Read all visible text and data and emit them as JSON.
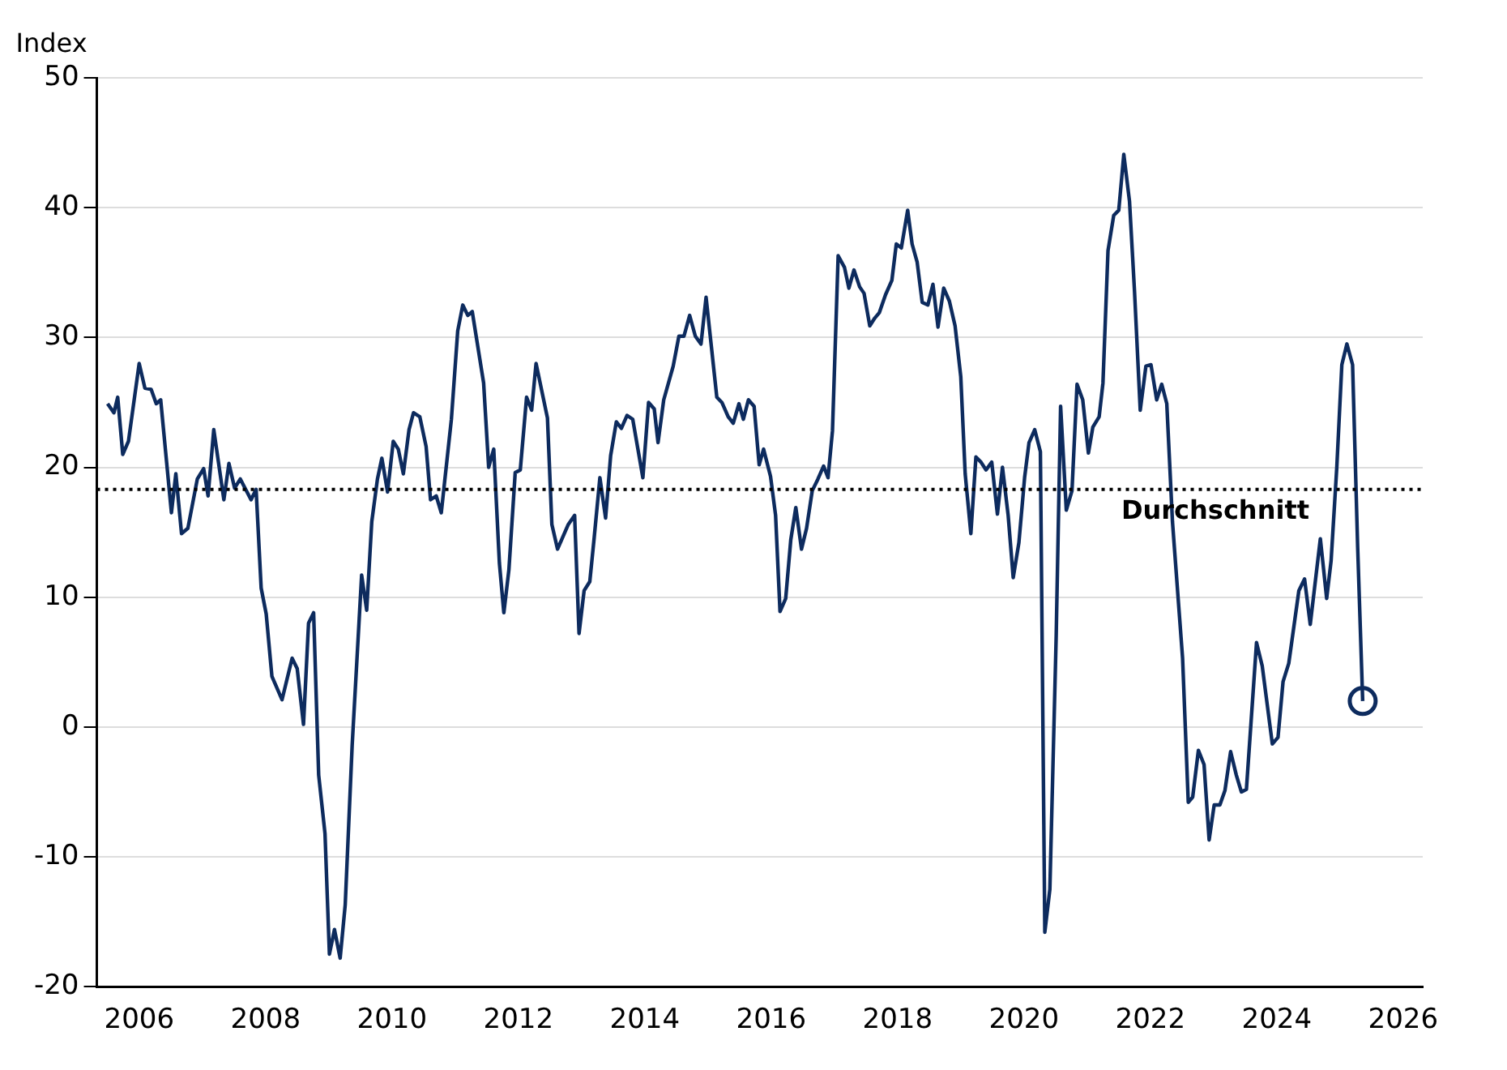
{
  "chart_data": {
    "type": "line",
    "ylabel": "Index",
    "xlim": [
      2005.33,
      2026.31
    ],
    "xticks": [
      2006,
      2008,
      2010,
      2012,
      2014,
      2016,
      2018,
      2020,
      2022,
      2024,
      2026
    ],
    "ylim": [
      -20,
      50
    ],
    "yticks": [
      -20,
      -10,
      0,
      10,
      20,
      30,
      40,
      50
    ],
    "grid": "y",
    "legend": false,
    "marker": "none",
    "line_style": "solid",
    "ref_lines": [
      {
        "axis": "y",
        "value": 18.3,
        "label": "Durchschnitt",
        "color": "#000000",
        "line_style": "dotted"
      }
    ],
    "series": [
      {
        "color": "#0d2b5e",
        "x": [
          2005.5,
          2005.6,
          2005.66,
          2005.74,
          2005.83,
          2006.0,
          2006.09,
          2006.19,
          2006.27,
          2006.34,
          2006.51,
          2006.58,
          2006.67,
          2006.77,
          2006.92,
          2007.02,
          2007.09,
          2007.18,
          2007.34,
          2007.42,
          2007.51,
          2007.6,
          2007.77,
          2007.85,
          2007.93,
          2008.01,
          2008.1,
          2008.26,
          2008.42,
          2008.5,
          2008.6,
          2008.68,
          2008.76,
          2008.84,
          2008.94,
          2009.01,
          2009.09,
          2009.18,
          2009.26,
          2009.37,
          2009.52,
          2009.6,
          2009.68,
          2009.77,
          2009.84,
          2009.93,
          2010.02,
          2010.1,
          2010.18,
          2010.27,
          2010.34,
          2010.44,
          2010.54,
          2010.61,
          2010.7,
          2010.78,
          2010.94,
          2011.04,
          2011.12,
          2011.2,
          2011.27,
          2011.45,
          2011.53,
          2011.61,
          2011.7,
          2011.77,
          2011.85,
          2011.95,
          2012.03,
          2012.13,
          2012.21,
          2012.28,
          2012.46,
          2012.53,
          2012.62,
          2012.79,
          2012.89,
          2012.96,
          2013.04,
          2013.13,
          2013.2,
          2013.29,
          2013.38,
          2013.46,
          2013.55,
          2013.63,
          2013.72,
          2013.81,
          2013.97,
          2014.06,
          2014.15,
          2014.21,
          2014.3,
          2014.45,
          2014.54,
          2014.62,
          2014.71,
          2014.8,
          2014.89,
          2014.97,
          2015.14,
          2015.22,
          2015.32,
          2015.4,
          2015.49,
          2015.56,
          2015.64,
          2015.73,
          2015.81,
          2015.88,
          2015.99,
          2016.07,
          2016.14,
          2016.23,
          2016.31,
          2016.39,
          2016.48,
          2016.56,
          2016.65,
          2016.74,
          2016.83,
          2016.9,
          2016.97,
          2017.06,
          2017.16,
          2017.23,
          2017.31,
          2017.4,
          2017.47,
          2017.56,
          2017.64,
          2017.71,
          2017.81,
          2017.91,
          2017.98,
          2018.06,
          2018.16,
          2018.23,
          2018.31,
          2018.39,
          2018.48,
          2018.56,
          2018.64,
          2018.73,
          2018.82,
          2018.91,
          2019.0,
          2019.07,
          2019.16,
          2019.24,
          2019.32,
          2019.4,
          2019.49,
          2019.58,
          2019.66,
          2019.75,
          2019.83,
          2019.92,
          2020.01,
          2020.08,
          2020.17,
          2020.26,
          2020.33,
          2020.41,
          2020.51,
          2020.58,
          2020.67,
          2020.76,
          2020.84,
          2020.93,
          2021.02,
          2021.09,
          2021.19,
          2021.25,
          2021.33,
          2021.42,
          2021.5,
          2021.58,
          2021.67,
          2021.75,
          2021.84,
          2021.93,
          2022.01,
          2022.1,
          2022.18,
          2022.26,
          2022.35,
          2022.51,
          2022.6,
          2022.67,
          2022.76,
          2022.85,
          2022.93,
          2023.01,
          2023.1,
          2023.18,
          2023.27,
          2023.36,
          2023.44,
          2023.52,
          2023.68,
          2023.77,
          2023.93,
          2024.02,
          2024.1,
          2024.19,
          2024.35,
          2024.44,
          2024.53,
          2024.69,
          2024.79,
          2024.86,
          2024.95,
          2025.03,
          2025.11,
          2025.2,
          2025.28,
          2025.36
        ],
        "values": [
          24.9,
          24.2,
          25.4,
          21.0,
          22.0,
          28.0,
          26.1,
          26.0,
          24.9,
          25.2,
          16.5,
          19.5,
          14.9,
          15.3,
          19.1,
          19.9,
          17.8,
          22.9,
          17.5,
          20.3,
          18.4,
          19.1,
          17.5,
          18.3,
          10.7,
          8.7,
          3.9,
          2.1,
          5.3,
          4.5,
          0.2,
          8.0,
          8.8,
          -3.7,
          -8.2,
          -17.5,
          -15.6,
          -17.8,
          -13.7,
          -1.4,
          11.7,
          9.0,
          15.8,
          19.1,
          20.7,
          18.1,
          22.0,
          21.4,
          19.5,
          22.9,
          24.2,
          23.9,
          21.6,
          17.5,
          17.8,
          16.5,
          23.7,
          30.5,
          32.5,
          31.7,
          32.0,
          26.5,
          20.0,
          21.4,
          12.6,
          8.8,
          12.1,
          19.6,
          19.8,
          25.4,
          24.4,
          28.0,
          23.8,
          15.6,
          13.7,
          15.6,
          16.3,
          7.2,
          10.5,
          11.2,
          14.6,
          19.2,
          16.1,
          20.9,
          23.5,
          23.0,
          24.0,
          23.7,
          19.2,
          25.0,
          24.5,
          21.9,
          25.2,
          27.8,
          30.1,
          30.1,
          31.7,
          30.1,
          29.5,
          33.1,
          25.4,
          25.0,
          23.9,
          23.4,
          24.9,
          23.7,
          25.2,
          24.7,
          20.2,
          21.4,
          19.3,
          16.3,
          8.9,
          9.9,
          14.4,
          16.9,
          13.7,
          15.3,
          18.2,
          19.1,
          20.1,
          19.2,
          22.8,
          36.3,
          35.4,
          33.8,
          35.2,
          33.9,
          33.4,
          30.9,
          31.5,
          31.9,
          33.3,
          34.4,
          37.2,
          36.9,
          39.8,
          37.2,
          35.8,
          32.7,
          32.5,
          34.1,
          30.8,
          33.8,
          32.8,
          30.9,
          27.0,
          19.5,
          14.9,
          20.8,
          20.4,
          19.8,
          20.4,
          16.4,
          20.0,
          16.3,
          11.5,
          14.2,
          19.2,
          21.9,
          22.9,
          21.2,
          -15.8,
          -12.5,
          7.0,
          24.7,
          16.7,
          18.2,
          26.4,
          25.2,
          21.1,
          23.1,
          23.9,
          26.5,
          36.7,
          39.4,
          39.8,
          44.1,
          40.5,
          33.5,
          24.4,
          27.8,
          27.9,
          25.2,
          26.4,
          24.9,
          15.8,
          5.3,
          -5.8,
          -5.4,
          -1.8,
          -2.9,
          -8.7,
          -6.0,
          -6.0,
          -4.9,
          -1.9,
          -3.7,
          -5.0,
          -4.8,
          6.5,
          4.7,
          -1.3,
          -0.8,
          3.5,
          4.9,
          10.5,
          11.4,
          7.9,
          14.5,
          9.9,
          12.8,
          20.0,
          27.9,
          29.5,
          27.9,
          13.9,
          2.0
        ]
      },
      {
        "type": "scatter",
        "color": "#0d2b5e",
        "marker": "circle",
        "x": [
          2025.36
        ],
        "values": [
          2.0
        ]
      }
    ]
  }
}
